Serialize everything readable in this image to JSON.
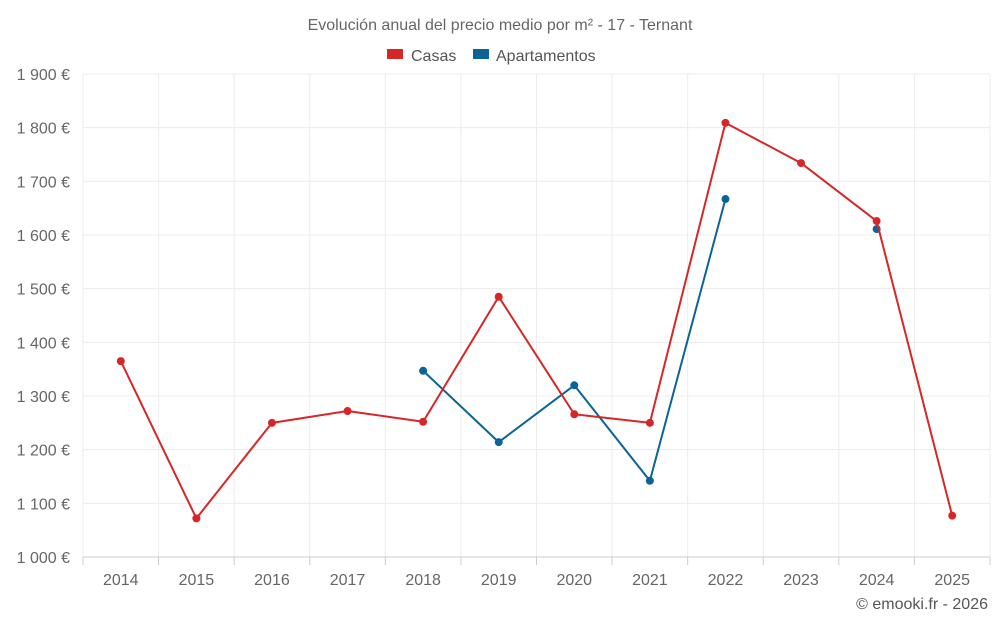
{
  "chart_data": {
    "type": "line",
    "title": "Evolución anual del precio medio por m² - 17 - Ternant",
    "categories": [
      "2014",
      "2015",
      "2016",
      "2017",
      "2018",
      "2019",
      "2020",
      "2021",
      "2022",
      "2023",
      "2024",
      "2025"
    ],
    "series": [
      {
        "name": "Casas",
        "color": "#d62728",
        "values": [
          1365,
          1072,
          1250,
          1272,
          1252,
          1485,
          1266,
          1250,
          1809,
          1734,
          1626,
          1077
        ]
      },
      {
        "name": "Apartamentos",
        "color": "#0b6496",
        "values": [
          null,
          null,
          null,
          null,
          1347,
          1214,
          1320,
          1142,
          1667,
          null,
          1611,
          null
        ]
      }
    ],
    "y_ticks": [
      "1 000 €",
      "1 100 €",
      "1 200 €",
      "1 300 €",
      "1 400 €",
      "1 500 €",
      "1 600 €",
      "1 700 €",
      "1 800 €",
      "1 900 €"
    ],
    "ylim": [
      1000,
      1900
    ],
    "xlabel": "",
    "ylabel": "",
    "grid": true,
    "legend_position": "top-center"
  },
  "credit": "© emooki.fr - 2026"
}
